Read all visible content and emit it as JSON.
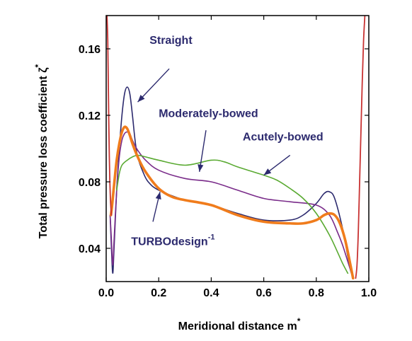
{
  "chart_data": {
    "type": "line",
    "xlabel": "Meridional distance m",
    "xlabel_sup": "*",
    "ylabel": "Total pressure loss coefficient ζ",
    "ylabel_sup": "*",
    "xlim": [
      0.0,
      1.0
    ],
    "ylim": [
      0.02,
      0.18
    ],
    "xticks": [
      0.0,
      0.2,
      0.4,
      0.6,
      0.8,
      1.0
    ],
    "xtick_labels": [
      "0.0",
      "0.2",
      "0.4",
      "0.6",
      "0.8",
      "1.0"
    ],
    "yticks": [
      0.04,
      0.08,
      0.12,
      0.16
    ],
    "ytick_labels": [
      "0.04",
      "0.08",
      "0.12",
      "0.16"
    ],
    "grid": false,
    "legend": "none",
    "series": [
      {
        "name": "Straight",
        "color": "#2c2a6e",
        "width": 1.6,
        "x": [
          0.015,
          0.02,
          0.025,
          0.03,
          0.04,
          0.05,
          0.06,
          0.07,
          0.08,
          0.09,
          0.1,
          0.11,
          0.12,
          0.14,
          0.16,
          0.2,
          0.3,
          0.4,
          0.5,
          0.6,
          0.7,
          0.75,
          0.8,
          0.83,
          0.85,
          0.87,
          0.9,
          0.92,
          0.93,
          0.94
        ],
        "y": [
          0.06,
          0.04,
          0.025,
          0.04,
          0.075,
          0.1,
          0.12,
          0.133,
          0.137,
          0.133,
          0.12,
          0.105,
          0.095,
          0.086,
          0.08,
          0.075,
          0.069,
          0.066,
          0.061,
          0.057,
          0.057,
          0.06,
          0.067,
          0.073,
          0.074,
          0.07,
          0.052,
          0.035,
          0.027,
          0.022
        ]
      },
      {
        "name": "Moderately-bowed",
        "color": "#7a2c8a",
        "width": 1.6,
        "x": [
          0.015,
          0.02,
          0.025,
          0.03,
          0.04,
          0.05,
          0.06,
          0.07,
          0.08,
          0.09,
          0.1,
          0.12,
          0.15,
          0.2,
          0.3,
          0.4,
          0.5,
          0.6,
          0.7,
          0.8,
          0.85,
          0.88,
          0.9,
          0.92,
          0.93,
          0.94
        ],
        "y": [
          0.06,
          0.045,
          0.03,
          0.045,
          0.075,
          0.095,
          0.105,
          0.109,
          0.11,
          0.109,
          0.105,
          0.099,
          0.093,
          0.087,
          0.082,
          0.08,
          0.075,
          0.07,
          0.068,
          0.066,
          0.06,
          0.05,
          0.042,
          0.032,
          0.027,
          0.022
        ]
      },
      {
        "name": "Acutely-bowed",
        "color": "#5aaa32",
        "width": 1.6,
        "x": [
          0.04,
          0.05,
          0.06,
          0.08,
          0.1,
          0.12,
          0.15,
          0.2,
          0.3,
          0.4,
          0.45,
          0.5,
          0.6,
          0.65,
          0.7,
          0.75,
          0.8,
          0.85,
          0.88,
          0.9,
          0.92
        ],
        "y": [
          0.075,
          0.085,
          0.09,
          0.093,
          0.095,
          0.096,
          0.095,
          0.093,
          0.09,
          0.093,
          0.092,
          0.089,
          0.084,
          0.081,
          0.076,
          0.07,
          0.061,
          0.048,
          0.038,
          0.031,
          0.025
        ]
      },
      {
        "name": "TURBOdesign",
        "name_sup": "-1",
        "color": "#f07c1c",
        "width": 3.6,
        "x": [
          0.018,
          0.022,
          0.03,
          0.04,
          0.05,
          0.06,
          0.07,
          0.08,
          0.09,
          0.1,
          0.12,
          0.15,
          0.2,
          0.25,
          0.3,
          0.4,
          0.5,
          0.6,
          0.7,
          0.75,
          0.8,
          0.83,
          0.85,
          0.87,
          0.89,
          0.91,
          0.93,
          0.94
        ],
        "y": [
          0.06,
          0.065,
          0.078,
          0.093,
          0.103,
          0.11,
          0.113,
          0.112,
          0.108,
          0.103,
          0.095,
          0.086,
          0.076,
          0.071,
          0.069,
          0.066,
          0.06,
          0.056,
          0.055,
          0.055,
          0.057,
          0.06,
          0.061,
          0.06,
          0.055,
          0.045,
          0.03,
          0.022
        ]
      },
      {
        "name": "",
        "color": "#c83232",
        "width": 1.8,
        "x": [
          0.003,
          0.006,
          0.008,
          0.01,
          0.012,
          0.014,
          0.016,
          0.018,
          0.02
        ],
        "y": [
          0.18,
          0.165,
          0.14,
          0.115,
          0.095,
          0.08,
          0.07,
          0.064,
          0.06
        ]
      },
      {
        "name": "",
        "color": "#c83232",
        "width": 1.8,
        "x": [
          0.95,
          0.955,
          0.96,
          0.965,
          0.97,
          0.975,
          0.98,
          0.985
        ],
        "y": [
          0.022,
          0.03,
          0.05,
          0.08,
          0.11,
          0.14,
          0.165,
          0.18
        ]
      }
    ],
    "annotations": [
      {
        "text": "Straight",
        "color": "#2c2a6e",
        "tx": 0.165,
        "ty": 0.163,
        "ax": 0.24,
        "ay": 0.148,
        "px": 0.12,
        "py": 0.128
      },
      {
        "text": "Moderately-bowed",
        "color": "#2c2a6e",
        "tx": 0.2,
        "ty": 0.119,
        "ax": 0.38,
        "ay": 0.111,
        "px": 0.355,
        "py": 0.086
      },
      {
        "text": "Acutely-bowed",
        "color": "#2c2a6e",
        "tx": 0.52,
        "ty": 0.105,
        "ax": 0.7,
        "ay": 0.096,
        "px": 0.6,
        "py": 0.084
      },
      {
        "text": "TURBOdesign",
        "sup": "-1",
        "color": "#2c2a6e",
        "tx": 0.095,
        "ty": 0.042,
        "ax": 0.178,
        "ay": 0.056,
        "px": 0.205,
        "py": 0.074
      }
    ]
  }
}
